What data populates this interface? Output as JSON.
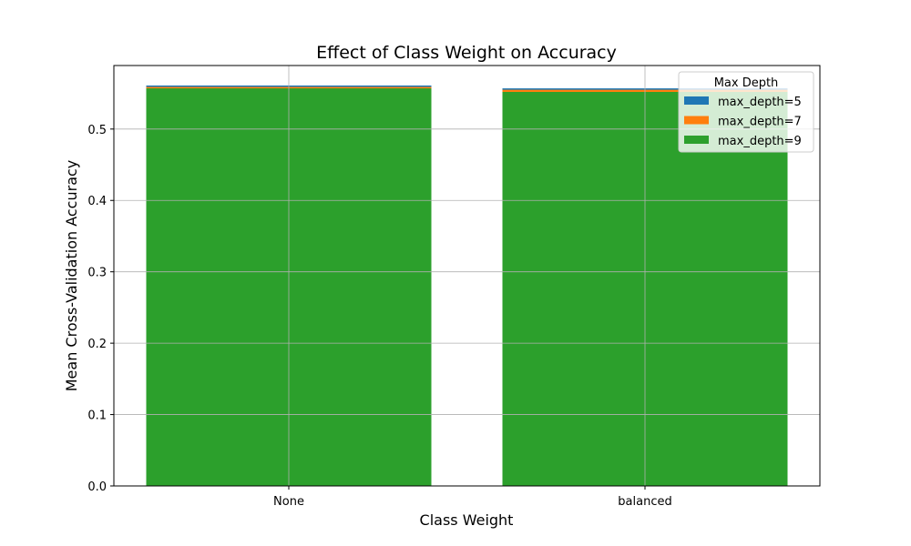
{
  "chart_data": {
    "type": "bar",
    "title": "Effect of Class Weight on Accuracy",
    "xlabel": "Class Weight",
    "ylabel": "Mean Cross-Validation Accuracy",
    "categories": [
      "None",
      "balanced"
    ],
    "series": [
      {
        "name": "max_depth=5",
        "color": "#1f77b4",
        "values": [
          0.561,
          0.557
        ]
      },
      {
        "name": "max_depth=7",
        "color": "#ff7f0e",
        "values": [
          0.559,
          0.555
        ]
      },
      {
        "name": "max_depth=9",
        "color": "#2ca02c",
        "values": [
          0.557,
          0.552
        ]
      }
    ],
    "ylim": [
      0,
      0.589
    ],
    "yticks": [
      "0.0",
      "0.1",
      "0.2",
      "0.3",
      "0.4",
      "0.5"
    ],
    "grid": true,
    "legend": {
      "title": "Max Depth",
      "placement": "top-right"
    }
  }
}
